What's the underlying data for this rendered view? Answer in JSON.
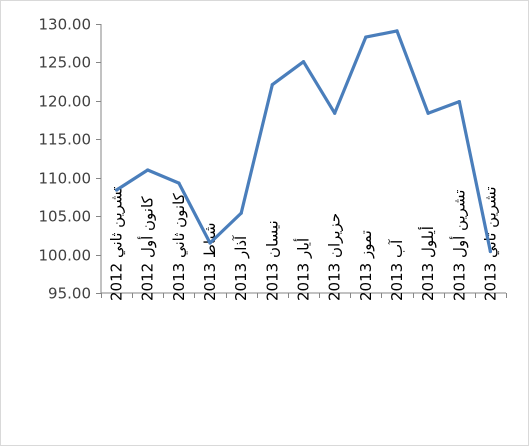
{
  "chart_data": {
    "type": "line",
    "categories": [
      "تشرين ثاني 2012",
      "كانون أول 2012",
      "كانون ثاني 2013",
      "شباط 2013",
      "آذار 2013",
      "نيسان 2013",
      "أيار 2013",
      "حزيران 2013",
      "تموز 2013",
      "آب 2013",
      "أيلول 2013",
      "تشرين أول 2013",
      "تشرين ثاني 2013"
    ],
    "series": [
      {
        "values": [
          108.4,
          111.0,
          109.3,
          101.5,
          105.4,
          122.1,
          125.1,
          118.4,
          128.3,
          129.1,
          118.4,
          119.9,
          100.4
        ],
        "color": "#4a7ebb"
      }
    ],
    "yticks": [
      "95.00",
      "100.00",
      "105.00",
      "110.00",
      "115.00",
      "120.00",
      "125.00",
      "130.00"
    ],
    "ylim": [
      95,
      130
    ],
    "title": "",
    "xlabel": "",
    "ylabel": "",
    "grid": false,
    "legend": "none"
  }
}
